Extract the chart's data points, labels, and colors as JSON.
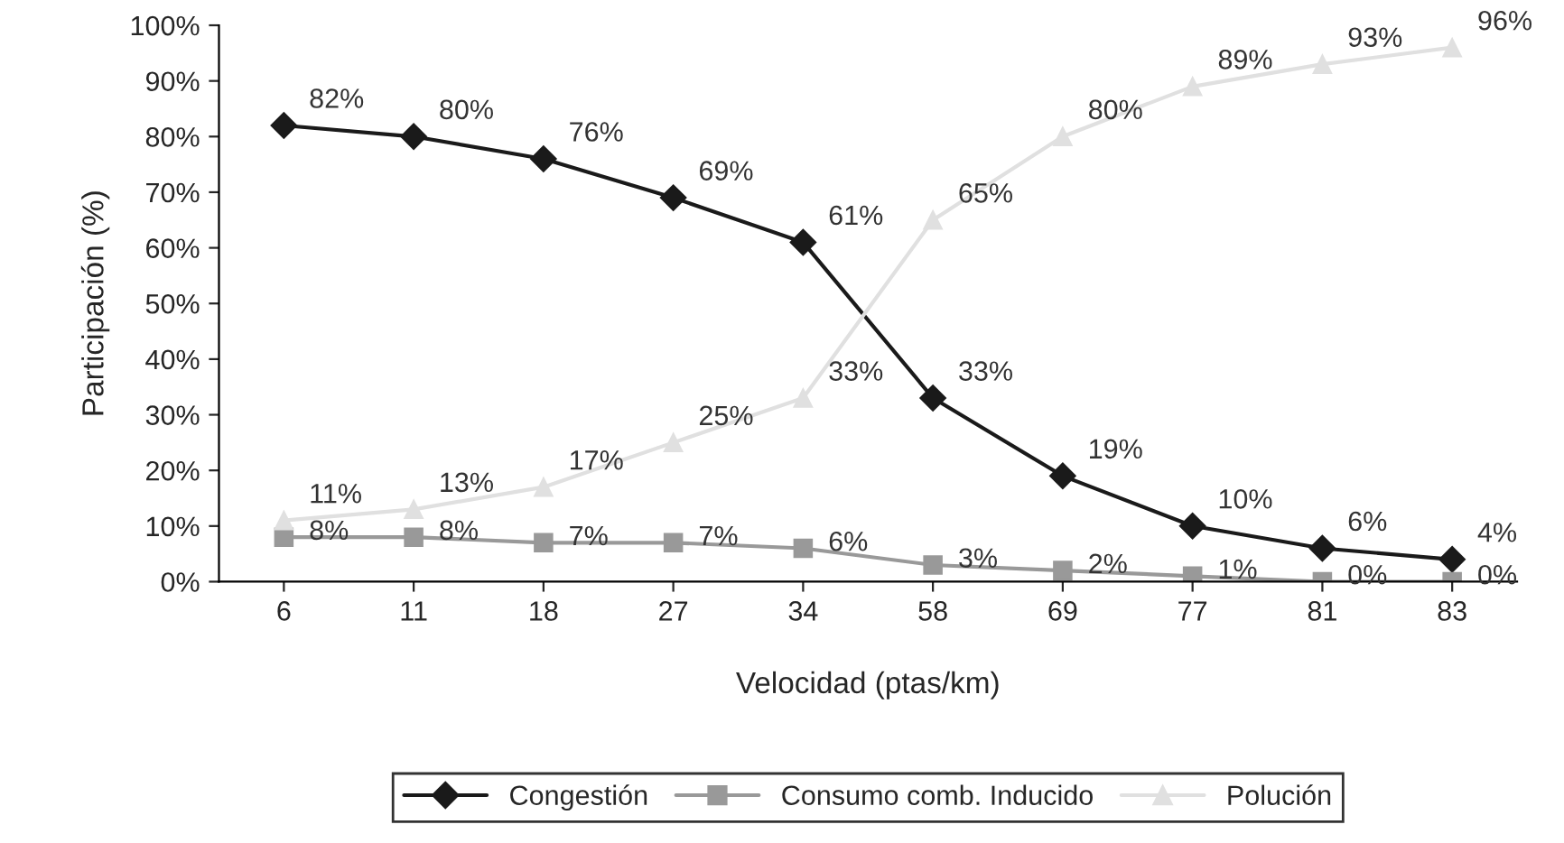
{
  "chart_data": {
    "type": "line",
    "xlabel": "Velocidad (ptas/km)",
    "ylabel": "Participación (%)",
    "categories": [
      "6",
      "11",
      "18",
      "27",
      "34",
      "58",
      "69",
      "77",
      "81",
      "83"
    ],
    "series": [
      {
        "name": "Congestión",
        "color": "#1a1a1a",
        "marker": "diamond",
        "values": [
          82,
          80,
          76,
          69,
          61,
          33,
          19,
          10,
          6,
          4
        ],
        "value_labels": [
          "82%",
          "80%",
          "76%",
          "69%",
          "61%",
          "33%",
          "19%",
          "10%",
          "6%",
          "4%"
        ]
      },
      {
        "name": "Consumo comb. Inducido",
        "color": "#999999",
        "marker": "square",
        "values": [
          8,
          8,
          7,
          7,
          6,
          3,
          2,
          1,
          0,
          0
        ],
        "value_labels": [
          "8%",
          "8%",
          "7%",
          "7%",
          "6%",
          "3%",
          "2%",
          "1%",
          "0%",
          "0%"
        ]
      },
      {
        "name": "Polución",
        "color": "#e0e0e0",
        "marker": "triangle",
        "values": [
          11,
          13,
          17,
          25,
          33,
          65,
          80,
          89,
          93,
          96
        ],
        "value_labels": [
          "11%",
          "13%",
          "17%",
          "25%",
          "33%",
          "65%",
          "80%",
          "89%",
          "93%",
          "96%"
        ]
      }
    ],
    "ylim": [
      0,
      100
    ],
    "yticks": [
      {
        "value": 0,
        "label": "0%"
      },
      {
        "value": 10,
        "label": "10%"
      },
      {
        "value": 20,
        "label": "20%"
      },
      {
        "value": 30,
        "label": "30%"
      },
      {
        "value": 40,
        "label": "40%"
      },
      {
        "value": 50,
        "label": "50%"
      },
      {
        "value": 60,
        "label": "60%"
      },
      {
        "value": 70,
        "label": "70%"
      },
      {
        "value": 80,
        "label": "80%"
      },
      {
        "value": 90,
        "label": "90%"
      },
      {
        "value": 100,
        "label": "100%"
      }
    ],
    "grid": false,
    "legend": "bottom"
  }
}
